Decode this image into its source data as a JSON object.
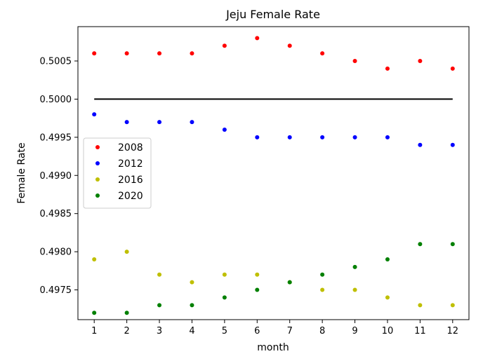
{
  "chart_data": {
    "type": "scatter",
    "title": "Jeju Female Rate",
    "xlabel": "month",
    "ylabel": "Female Rate",
    "x": [
      1,
      2,
      3,
      4,
      5,
      6,
      7,
      8,
      9,
      10,
      11,
      12
    ],
    "xlim": [
      0.5,
      12.5
    ],
    "ylim": [
      0.49711,
      0.50095
    ],
    "xticks": [
      "1",
      "2",
      "3",
      "4",
      "5",
      "6",
      "7",
      "8",
      "9",
      "10",
      "11",
      "12"
    ],
    "yticks": [
      "0.4975",
      "0.4980",
      "0.4985",
      "0.4990",
      "0.4995",
      "0.5000",
      "0.5005"
    ],
    "ytick_values": [
      0.4975,
      0.498,
      0.4985,
      0.499,
      0.4995,
      0.5,
      0.5005
    ],
    "grid": false,
    "legend_position": "center-left",
    "reference_line": {
      "y": 0.5,
      "x_from": 1,
      "x_to": 12,
      "color": "#000000"
    },
    "series": [
      {
        "name": "2008",
        "color": "#ff0000",
        "values": [
          0.5006,
          0.5006,
          0.5006,
          0.5006,
          0.5007,
          0.5008,
          0.5007,
          0.5006,
          0.5005,
          0.5004,
          0.5005,
          0.5004
        ]
      },
      {
        "name": "2012",
        "color": "#0000ff",
        "values": [
          0.4998,
          0.4997,
          0.4997,
          0.4997,
          0.4996,
          0.4995,
          0.4995,
          0.4995,
          0.4995,
          0.4995,
          0.4994,
          0.4994
        ]
      },
      {
        "name": "2016",
        "color": "#bfbf00",
        "values": [
          0.4979,
          0.498,
          0.4977,
          0.4976,
          0.4977,
          0.4977,
          0.4976,
          0.4975,
          0.4975,
          0.4974,
          0.4973,
          0.4973
        ]
      },
      {
        "name": "2020",
        "color": "#008000",
        "values": [
          0.4972,
          0.4972,
          0.4973,
          0.4973,
          0.4974,
          0.4975,
          0.4976,
          0.4977,
          0.4978,
          0.4979,
          0.4981,
          0.4981
        ]
      }
    ]
  }
}
